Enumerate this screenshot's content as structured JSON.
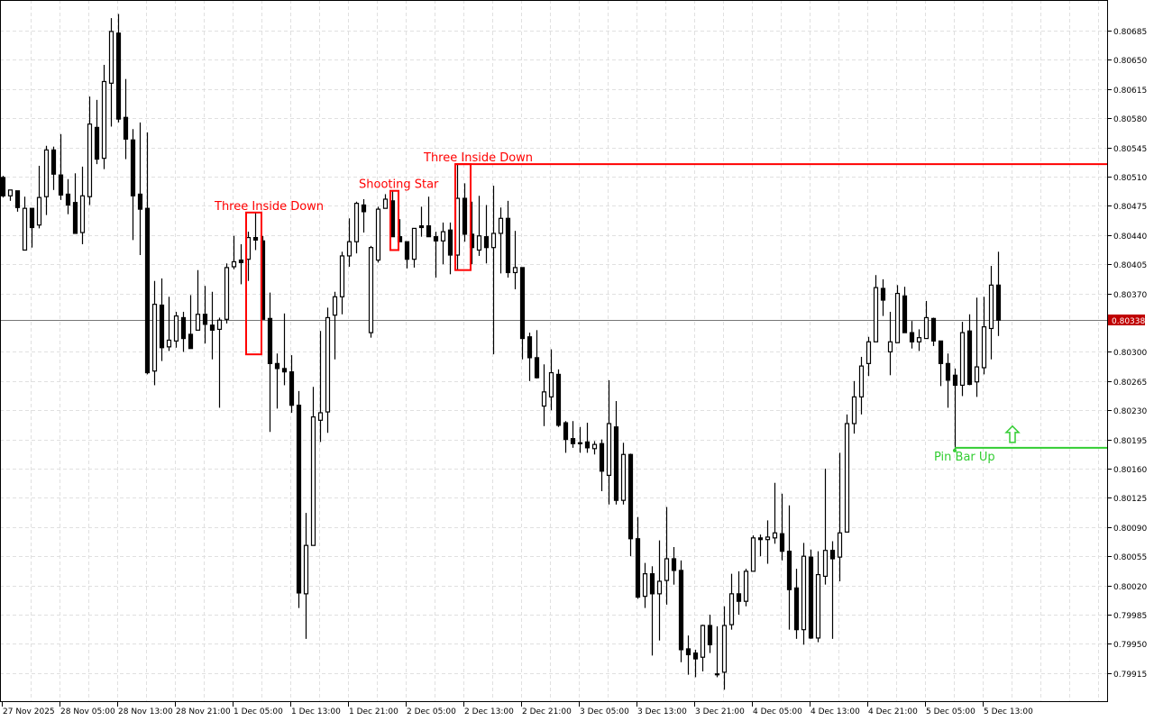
{
  "chart_data": {
    "type": "candlestick",
    "title": "",
    "xlabel": "",
    "ylabel": "",
    "ylim": [
      0.7988,
      0.80722
    ],
    "grid": true,
    "colors": {
      "bull_body": "#ffffff",
      "bear_body": "#000000",
      "outline": "#000000",
      "bearish_pattern": "#ff0000",
      "bullish_pattern": "#32cd32",
      "current_price_bg": "#c00000",
      "grid": "#e0e0e0"
    },
    "y_ticks": [
      "0.80685",
      "0.80650",
      "0.80615",
      "0.80580",
      "0.80545",
      "0.80510",
      "0.80475",
      "0.80440",
      "0.80405",
      "0.80370",
      "0.80300",
      "0.80265",
      "0.80230",
      "0.80195",
      "0.80160",
      "0.80125",
      "0.80090",
      "0.80055",
      "0.80020",
      "0.79985",
      "0.79950",
      "0.79915"
    ],
    "x_ticks": [
      "27 Nov 2025",
      "28 Nov 05:00",
      "28 Nov 13:00",
      "28 Nov 21:00",
      "1 Dec 05:00",
      "1 Dec 13:00",
      "1 Dec 21:00",
      "2 Dec 05:00",
      "2 Dec 13:00",
      "2 Dec 21:00",
      "3 Dec 05:00",
      "3 Dec 13:00",
      "3 Dec 21:00",
      "4 Dec 05:00",
      "4 Dec 13:00",
      "4 Dec 21:00",
      "5 Dec 05:00",
      "5 Dec 13:00"
    ],
    "current_price": "0.80338",
    "ohlc_fields": [
      "open",
      "high",
      "low",
      "close"
    ],
    "candles": [
      [
        0.80509,
        0.80511,
        0.80485,
        0.80487
      ],
      [
        0.80487,
        0.80494,
        0.80481,
        0.80494
      ],
      [
        0.80493,
        0.80493,
        0.80468,
        0.80473
      ],
      [
        0.80422,
        0.80486,
        0.80422,
        0.80472
      ],
      [
        0.80472,
        0.80472,
        0.80425,
        0.80449
      ],
      [
        0.80452,
        0.80523,
        0.80448,
        0.80485
      ],
      [
        0.80486,
        0.80547,
        0.80464,
        0.80542
      ],
      [
        0.80542,
        0.80546,
        0.80494,
        0.80513
      ],
      [
        0.80512,
        0.80561,
        0.80482,
        0.80488
      ],
      [
        0.80489,
        0.80507,
        0.80465,
        0.80476
      ],
      [
        0.80479,
        0.80514,
        0.80442,
        0.80442
      ],
      [
        0.80443,
        0.80522,
        0.80429,
        0.80487
      ],
      [
        0.80486,
        0.80606,
        0.80476,
        0.80573
      ],
      [
        0.80569,
        0.80602,
        0.80525,
        0.80531
      ],
      [
        0.80532,
        0.80644,
        0.80519,
        0.80624
      ],
      [
        0.80622,
        0.807,
        0.8057,
        0.80684
      ],
      [
        0.80682,
        0.80705,
        0.80575,
        0.80579
      ],
      [
        0.80581,
        0.80627,
        0.80531,
        0.80555
      ],
      [
        0.80554,
        0.80567,
        0.80434,
        0.80487
      ],
      [
        0.80489,
        0.80575,
        0.80416,
        0.80471
      ],
      [
        0.80472,
        0.80563,
        0.80273,
        0.80275
      ],
      [
        0.80277,
        0.80385,
        0.8026,
        0.80357
      ],
      [
        0.80356,
        0.80388,
        0.80289,
        0.80305
      ],
      [
        0.80306,
        0.80366,
        0.80301,
        0.80314
      ],
      [
        0.80313,
        0.80348,
        0.80305,
        0.80343
      ],
      [
        0.80341,
        0.80348,
        0.803,
        0.80316
      ],
      [
        0.80321,
        0.80368,
        0.80304,
        0.80304
      ],
      [
        0.80326,
        0.80398,
        0.80326,
        0.80345
      ],
      [
        0.80345,
        0.80379,
        0.8031,
        0.80333
      ],
      [
        0.80332,
        0.80372,
        0.80291,
        0.80326
      ],
      [
        0.80327,
        0.80341,
        0.80233,
        0.80338
      ],
      [
        0.80339,
        0.80406,
        0.80334,
        0.80401
      ],
      [
        0.80402,
        0.80439,
        0.80399,
        0.80408
      ],
      [
        0.8041,
        0.80429,
        0.80381,
        0.80407
      ],
      [
        0.80411,
        0.80444,
        0.80385,
        0.80437
      ],
      [
        0.80437,
        0.80467,
        0.80422,
        0.80434
      ],
      [
        0.80433,
        0.80439,
        0.80339,
        0.80339
      ],
      [
        0.8034,
        0.80371,
        0.80204,
        0.80286
      ],
      [
        0.80286,
        0.80298,
        0.80232,
        0.8028
      ],
      [
        0.8028,
        0.80346,
        0.8026,
        0.80276
      ],
      [
        0.80276,
        0.80296,
        0.80227,
        0.80236
      ],
      [
        0.80236,
        0.80253,
        0.79993,
        0.80011
      ],
      [
        0.8001,
        0.80107,
        0.79956,
        0.80068
      ],
      [
        0.80068,
        0.80258,
        0.80068,
        0.80222
      ],
      [
        0.80218,
        0.80325,
        0.80192,
        0.80227
      ],
      [
        0.80228,
        0.80353,
        0.80203,
        0.80341
      ],
      [
        0.80344,
        0.80372,
        0.80291,
        0.80366
      ],
      [
        0.80366,
        0.8042,
        0.80345,
        0.80415
      ],
      [
        0.80415,
        0.8046,
        0.80402,
        0.80432
      ],
      [
        0.80432,
        0.8048,
        0.80418,
        0.80478
      ],
      [
        0.80476,
        0.80483,
        0.80443,
        0.80468
      ],
      [
        0.80323,
        0.80427,
        0.80317,
        0.80425
      ],
      [
        0.8041,
        0.80474,
        0.80407,
        0.80471
      ],
      [
        0.80472,
        0.80489,
        0.80472,
        0.80483
      ],
      [
        0.80481,
        0.80493,
        0.80438,
        0.80438
      ],
      [
        0.80438,
        0.80459,
        0.80432,
        0.80432
      ],
      [
        0.80432,
        0.80432,
        0.804,
        0.80411
      ],
      [
        0.80411,
        0.80448,
        0.80401,
        0.80448
      ],
      [
        0.80451,
        0.80474,
        0.80438,
        0.80449
      ],
      [
        0.80451,
        0.80486,
        0.80438,
        0.80438
      ],
      [
        0.80438,
        0.80444,
        0.80389,
        0.80433
      ],
      [
        0.80433,
        0.80455,
        0.80405,
        0.80444
      ],
      [
        0.80446,
        0.80455,
        0.80393,
        0.80416
      ],
      [
        0.80416,
        0.80525,
        0.80398,
        0.80484
      ],
      [
        0.80484,
        0.80502,
        0.80432,
        0.80441
      ],
      [
        0.80441,
        0.8048,
        0.80405,
        0.80425
      ],
      [
        0.80422,
        0.80487,
        0.80415,
        0.80439
      ],
      [
        0.80438,
        0.80476,
        0.80406,
        0.80425
      ],
      [
        0.80425,
        0.80499,
        0.80297,
        0.80442
      ],
      [
        0.80442,
        0.80473,
        0.80394,
        0.8046
      ],
      [
        0.8046,
        0.80481,
        0.80389,
        0.80395
      ],
      [
        0.80395,
        0.80445,
        0.80375,
        0.80401
      ],
      [
        0.80401,
        0.80401,
        0.80291,
        0.80316
      ],
      [
        0.80318,
        0.80323,
        0.80265,
        0.80293
      ],
      [
        0.80293,
        0.80326,
        0.80268,
        0.80269
      ],
      [
        0.80235,
        0.80285,
        0.80211,
        0.80252
      ],
      [
        0.80246,
        0.80303,
        0.8023,
        0.80275
      ],
      [
        0.80273,
        0.80279,
        0.8021,
        0.80212
      ],
      [
        0.80215,
        0.80217,
        0.80179,
        0.80195
      ],
      [
        0.80196,
        0.80217,
        0.80185,
        0.8019
      ],
      [
        0.80191,
        0.8021,
        0.80179,
        0.8019
      ],
      [
        0.80192,
        0.80215,
        0.80179,
        0.80185
      ],
      [
        0.80184,
        0.80193,
        0.80177,
        0.80189
      ],
      [
        0.8019,
        0.80195,
        0.80133,
        0.80157
      ],
      [
        0.80152,
        0.80266,
        0.80117,
        0.80214
      ],
      [
        0.8021,
        0.80241,
        0.80117,
        0.80122
      ],
      [
        0.80122,
        0.80191,
        0.80117,
        0.80177
      ],
      [
        0.80177,
        0.80178,
        0.80055,
        0.80076
      ],
      [
        0.80076,
        0.80102,
        0.80004,
        0.80006
      ],
      [
        0.80007,
        0.80047,
        0.79993,
        0.80034
      ],
      [
        0.80034,
        0.80043,
        0.79936,
        0.8001
      ],
      [
        0.8001,
        0.80074,
        0.79954,
        0.80025
      ],
      [
        0.80026,
        0.80114,
        0.79997,
        0.80052
      ],
      [
        0.80052,
        0.80066,
        0.80021,
        0.80038
      ],
      [
        0.80038,
        0.8005,
        0.79928,
        0.79943
      ],
      [
        0.79944,
        0.7996,
        0.79913,
        0.79937
      ],
      [
        0.79939,
        0.79943,
        0.7991,
        0.79932
      ],
      [
        0.79934,
        0.79973,
        0.79917,
        0.79972
      ],
      [
        0.79972,
        0.79985,
        0.79939,
        0.79949
      ],
      [
        0.79914,
        0.79971,
        0.7991,
        0.79913
      ],
      [
        0.79916,
        0.79995,
        0.79895,
        0.79972
      ],
      [
        0.79973,
        0.80034,
        0.79967,
        0.8001
      ],
      [
        0.8001,
        0.80037,
        0.79985,
        0.80001
      ],
      [
        0.80001,
        0.8004,
        0.79995,
        0.80037
      ],
      [
        0.80037,
        0.8008,
        0.80037,
        0.80077
      ],
      [
        0.80077,
        0.80081,
        0.80055,
        0.80075
      ],
      [
        0.80075,
        0.80098,
        0.80046,
        0.80078
      ],
      [
        0.80077,
        0.80143,
        0.8007,
        0.80083
      ],
      [
        0.80082,
        0.8013,
        0.8005,
        0.80061
      ],
      [
        0.80061,
        0.80116,
        0.79967,
        0.80015
      ],
      [
        0.80017,
        0.8004,
        0.79956,
        0.79967
      ],
      [
        0.79967,
        0.80071,
        0.79949,
        0.80055
      ],
      [
        0.80054,
        0.80063,
        0.79956,
        0.79957
      ],
      [
        0.79957,
        0.80061,
        0.79952,
        0.80033
      ],
      [
        0.80031,
        0.8016,
        0.80021,
        0.80062
      ],
      [
        0.80062,
        0.80073,
        0.79956,
        0.80052
      ],
      [
        0.80054,
        0.80179,
        0.80025,
        0.80083
      ],
      [
        0.80084,
        0.80225,
        0.80084,
        0.80214
      ],
      [
        0.80214,
        0.80265,
        0.80202,
        0.80246
      ],
      [
        0.80246,
        0.80294,
        0.80225,
        0.80283
      ],
      [
        0.80286,
        0.80318,
        0.80271,
        0.80312
      ],
      [
        0.80312,
        0.80392,
        0.80312,
        0.80377
      ],
      [
        0.80376,
        0.80387,
        0.80343,
        0.80362
      ],
      [
        0.803,
        0.80348,
        0.80272,
        0.80312
      ],
      [
        0.80311,
        0.8038,
        0.80311,
        0.8037
      ],
      [
        0.80367,
        0.80378,
        0.80323,
        0.80323
      ],
      [
        0.80323,
        0.80337,
        0.80304,
        0.80312
      ],
      [
        0.80312,
        0.80327,
        0.80301,
        0.80317
      ],
      [
        0.80316,
        0.80361,
        0.80316,
        0.80341
      ],
      [
        0.8034,
        0.80341,
        0.80307,
        0.80313
      ],
      [
        0.80313,
        0.80313,
        0.80259,
        0.80286
      ],
      [
        0.80286,
        0.80298,
        0.80233,
        0.80266
      ],
      [
        0.80272,
        0.8028,
        0.80183,
        0.8026
      ],
      [
        0.8026,
        0.80336,
        0.80247,
        0.80323
      ],
      [
        0.80325,
        0.80345,
        0.8026,
        0.80261
      ],
      [
        0.80264,
        0.80365,
        0.80246,
        0.80282
      ],
      [
        0.80281,
        0.80366,
        0.80273,
        0.8033
      ],
      [
        0.80328,
        0.80403,
        0.80291,
        0.8038
      ],
      [
        0.8038,
        0.8042,
        0.80319,
        0.80338
      ]
    ],
    "patterns": [
      {
        "label": "Three Inside Down",
        "direction": "bearish",
        "first_candle": 34,
        "last_candle": 36,
        "high": 0.80467,
        "low": 0.80297,
        "level_line": false
      },
      {
        "label": "Shooting Star",
        "direction": "bearish",
        "first_candle": 54,
        "last_candle": 55,
        "high": 0.80493,
        "low": 0.80422,
        "level_line": false
      },
      {
        "label": "Three Inside Down",
        "direction": "bearish",
        "first_candle": 63,
        "last_candle": 65,
        "high": 0.80525,
        "low": 0.80398,
        "level_line": true,
        "level": 0.80525
      },
      {
        "label": "Pin Bar Up",
        "direction": "bullish",
        "first_candle": 132,
        "last_candle": 132,
        "level": 0.80185,
        "level_line": true,
        "arrow": "up-arrow-icon"
      }
    ]
  }
}
